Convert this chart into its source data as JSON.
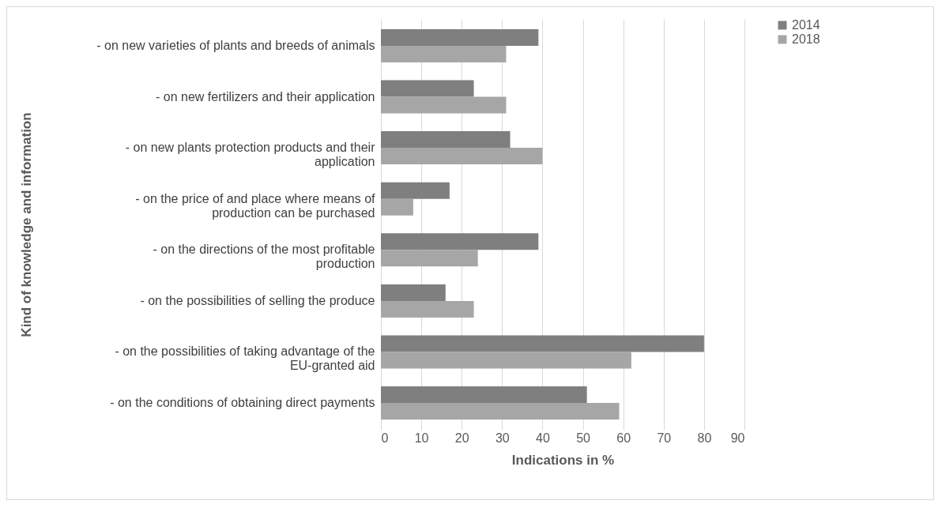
{
  "chart_data": {
    "type": "bar",
    "orientation": "horizontal",
    "xlabel": "Indications in %",
    "ylabel": "Kind of knowledge and information",
    "categories": [
      "- on new varieties of plants and breeds of animals",
      "- on new fertilizers and their application",
      "- on new plants protection products and their application",
      "- on the price of and place where means of production can be purchased",
      "- on the directions of the most profitable production",
      "- on the possibilities of selling the produce",
      "- on the possibilities of taking advantage of the EU-granted aid",
      "- on the conditions of obtaining direct payments"
    ],
    "series": [
      {
        "name": "2014",
        "color": "#7f7f7f",
        "values": [
          39,
          23,
          32,
          17,
          39,
          16,
          80,
          51
        ]
      },
      {
        "name": "2018",
        "color": "#a6a6a6",
        "values": [
          31,
          31,
          40,
          8,
          24,
          23,
          62,
          59
        ]
      }
    ],
    "xlim": [
      0,
      90
    ],
    "xticks": [
      0,
      10,
      20,
      30,
      40,
      50,
      60,
      70,
      80,
      90
    ],
    "grid": "x",
    "legend": "right"
  }
}
